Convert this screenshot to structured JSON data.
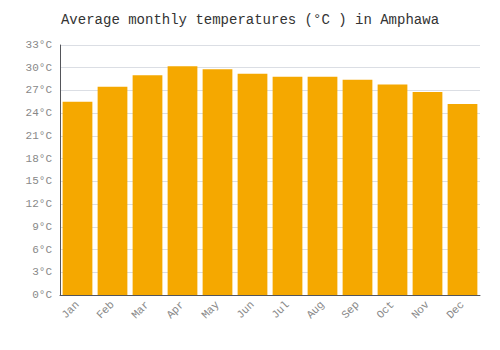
{
  "chart_data": {
    "type": "bar",
    "title": "Average monthly temperatures (°C ) in Amphawa",
    "categories": [
      "Jan",
      "Feb",
      "Mar",
      "Apr",
      "May",
      "Jun",
      "Jul",
      "Aug",
      "Sep",
      "Oct",
      "Nov",
      "Dec"
    ],
    "values": [
      25.5,
      27.5,
      29.0,
      30.2,
      29.8,
      29.2,
      28.8,
      28.8,
      28.4,
      27.8,
      26.8,
      25.2
    ],
    "color": "#F5A800",
    "ylim": [
      0,
      33
    ],
    "yticks": [
      {
        "value": 0,
        "label": "0°C"
      },
      {
        "value": 3,
        "label": "3°C"
      },
      {
        "value": 6,
        "label": "6°C"
      },
      {
        "value": 9,
        "label": "9°C"
      },
      {
        "value": 12,
        "label": "12°C"
      },
      {
        "value": 15,
        "label": "15°C"
      },
      {
        "value": 18,
        "label": "18°C"
      },
      {
        "value": 21,
        "label": "21°C"
      },
      {
        "value": 24,
        "label": "24°C"
      },
      {
        "value": 27,
        "label": "27°C"
      },
      {
        "value": 30,
        "label": "30°C"
      },
      {
        "value": 33,
        "label": "33°C"
      }
    ],
    "grid": true
  }
}
